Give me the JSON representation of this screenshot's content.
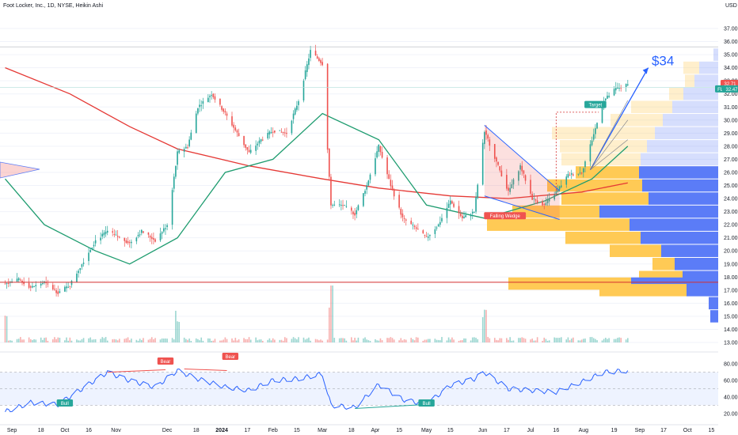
{
  "header": {
    "title": "Foot Locker, Inc., 1D, NYSE, Heikin Ashi",
    "currency": "USD"
  },
  "colors": {
    "up": "#26a69a",
    "down": "#ef5350",
    "ma_slow": "#e53935",
    "ma_fast": "#1e9c6f",
    "rsi": "#2962ff",
    "vp_up": "#ffca55",
    "vp_down": "#5b7cf7",
    "support": "#d32f2f",
    "annotation": "#2962ff"
  },
  "badges": {
    "last_price": "32.71",
    "fl_label": "FL",
    "fl_value": "32.47"
  },
  "annotations": {
    "target_label": "Target",
    "pattern_label": "Falling Wedge",
    "price_target": "$34",
    "bear_1": "Bear",
    "bear_2": "Bear",
    "bull_1": "Bull",
    "bull_2": "Bull"
  },
  "chart_data": [
    {
      "type": "candlestick",
      "title": "Foot Locker, Inc., 1D, NYSE, Heikin Ashi",
      "y_axis_ticks": [
        "37.00",
        "36.00",
        "35.00",
        "34.00",
        "33.00",
        "32.00",
        "31.00",
        "30.00",
        "29.00",
        "28.00",
        "27.00",
        "26.00",
        "25.00",
        "24.00",
        "23.00",
        "22.00",
        "21.00",
        "20.00",
        "19.00",
        "18.00",
        "17.00",
        "16.00",
        "15.00",
        "14.00",
        "13.00"
      ],
      "ylim": [
        13.0,
        37.0
      ],
      "x_axis_ticks": [
        "Sep",
        "18",
        "Oct",
        "16",
        "Nov",
        "Dec",
        "18",
        "2024",
        "17",
        "Feb",
        "15",
        "Mar",
        "18",
        "Apr",
        "15",
        "May",
        "15",
        "Jun",
        "17",
        "Jul",
        "16",
        "Aug",
        "19",
        "Sep",
        "17",
        "Oct",
        "15"
      ],
      "close_path": [
        [
          "2023-08-28",
          17.5
        ],
        [
          "2023-09-05",
          17.8
        ],
        [
          "2023-09-12",
          17.2
        ],
        [
          "2023-09-20",
          17.6
        ],
        [
          "2023-09-28",
          16.8
        ],
        [
          "2023-10-05",
          17.4
        ],
        [
          "2023-10-12",
          19.0
        ],
        [
          "2023-10-20",
          20.8
        ],
        [
          "2023-10-27",
          21.5
        ],
        [
          "2023-11-03",
          21.0
        ],
        [
          "2023-11-09",
          20.6
        ],
        [
          "2023-11-16",
          21.5
        ],
        [
          "2023-11-24",
          20.8
        ],
        [
          "2023-12-01",
          22.0
        ],
        [
          "2023-12-07",
          27.5
        ],
        [
          "2023-12-13",
          28.0
        ],
        [
          "2023-12-19",
          31.0
        ],
        [
          "2023-12-27",
          32.0
        ],
        [
          "2024-01-04",
          30.5
        ],
        [
          "2024-01-11",
          29.0
        ],
        [
          "2024-01-18",
          27.5
        ],
        [
          "2024-01-25",
          28.5
        ],
        [
          "2024-02-01",
          29.2
        ],
        [
          "2024-02-09",
          29.0
        ],
        [
          "2024-02-16",
          31.5
        ],
        [
          "2024-02-23",
          35.3
        ],
        [
          "2024-03-01",
          34.3
        ],
        [
          "2024-03-06",
          23.5
        ],
        [
          "2024-03-13",
          23.5
        ],
        [
          "2024-03-20",
          22.8
        ],
        [
          "2024-03-27",
          25.0
        ],
        [
          "2024-04-03",
          28.0
        ],
        [
          "2024-04-10",
          25.0
        ],
        [
          "2024-04-17",
          22.5
        ],
        [
          "2024-04-24",
          21.8
        ],
        [
          "2024-05-01",
          21.0
        ],
        [
          "2024-05-08",
          22.0
        ],
        [
          "2024-05-15",
          23.8
        ],
        [
          "2024-05-22",
          22.5
        ],
        [
          "2024-05-29",
          23.0
        ],
        [
          "2024-06-04",
          29.2
        ],
        [
          "2024-06-11",
          26.8
        ],
        [
          "2024-06-18",
          24.5
        ],
        [
          "2024-06-25",
          26.5
        ],
        [
          "2024-07-02",
          24.0
        ],
        [
          "2024-07-09",
          23.5
        ],
        [
          "2024-07-16",
          24.5
        ],
        [
          "2024-07-23",
          25.8
        ],
        [
          "2024-07-31",
          26.0
        ],
        [
          "2024-08-06",
          28.5
        ],
        [
          "2024-08-13",
          31.5
        ],
        [
          "2024-08-20",
          32.4
        ],
        [
          "2024-08-27",
          32.7
        ]
      ],
      "volume_spikes": [
        "2023-08-28",
        "2023-12-07",
        "2024-03-06",
        "2024-06-04"
      ],
      "overlays": {
        "ma_slow_path": [
          [
            "2023-08-28",
            34.0
          ],
          [
            "2023-10-05",
            32.0
          ],
          [
            "2023-11-09",
            29.5
          ],
          [
            "2023-12-07",
            27.8
          ],
          [
            "2024-01-18",
            26.5
          ],
          [
            "2024-03-01",
            25.5
          ],
          [
            "2024-04-03",
            24.8
          ],
          [
            "2024-05-15",
            24.2
          ],
          [
            "2024-06-18",
            24.0
          ],
          [
            "2024-07-31",
            24.5
          ],
          [
            "2024-08-27",
            25.2
          ]
        ],
        "ma_fast_path": [
          [
            "2023-08-28",
            25.5
          ],
          [
            "2023-09-20",
            22.0
          ],
          [
            "2023-10-20",
            20.0
          ],
          [
            "2023-11-09",
            19.0
          ],
          [
            "2023-12-07",
            21.0
          ],
          [
            "2024-01-04",
            26.0
          ],
          [
            "2024-02-01",
            27.0
          ],
          [
            "2024-03-01",
            30.5
          ],
          [
            "2024-04-03",
            28.5
          ],
          [
            "2024-05-01",
            23.5
          ],
          [
            "2024-06-04",
            22.5
          ],
          [
            "2024-07-09",
            23.8
          ],
          [
            "2024-08-06",
            25.5
          ],
          [
            "2024-08-27",
            28.0
          ]
        ],
        "support_level": 17.6,
        "target_level": 30.6,
        "projection_target": 34.0
      },
      "volume_profile": [
        {
          "price": 35.0,
          "up": 0,
          "down": 6
        },
        {
          "price": 34.0,
          "up": 20,
          "down": 24
        },
        {
          "price": 33.0,
          "up": 12,
          "down": 30
        },
        {
          "price": 32.0,
          "up": 18,
          "down": 44
        },
        {
          "price": 31.0,
          "up": 52,
          "down": 58
        },
        {
          "price": 30.0,
          "up": 66,
          "down": 70
        },
        {
          "price": 29.0,
          "up": 130,
          "down": 80
        },
        {
          "price": 28.0,
          "up": 110,
          "down": 90
        },
        {
          "price": 27.0,
          "up": 100,
          "down": 98
        },
        {
          "price": 26.0,
          "up": 80,
          "down": 100
        },
        {
          "price": 25.0,
          "up": 120,
          "down": 96
        },
        {
          "price": 24.0,
          "up": 110,
          "down": 88
        },
        {
          "price": 23.0,
          "up": 110,
          "down": 150
        },
        {
          "price": 22.0,
          "up": 180,
          "down": 112
        },
        {
          "price": 21.0,
          "up": 95,
          "down": 98
        },
        {
          "price": 20.0,
          "up": 65,
          "down": 72
        },
        {
          "price": 19.0,
          "up": 28,
          "down": 55
        },
        {
          "price": 18.0,
          "up": 55,
          "down": 45
        },
        {
          "price": 17.5,
          "up": 155,
          "down": 110
        },
        {
          "price": 17.0,
          "up": 110,
          "down": 40
        },
        {
          "price": 16.0,
          "up": 0,
          "down": 12
        },
        {
          "price": 15.0,
          "up": 0,
          "down": 10
        }
      ]
    },
    {
      "type": "line",
      "title": "RSI",
      "y_axis_ticks": [
        "80.00",
        "60.00",
        "40.00",
        "20.00"
      ],
      "ylim": [
        15,
        85
      ],
      "bands": [
        30,
        70
      ],
      "path": [
        [
          "2023-08-28",
          22
        ],
        [
          "2023-09-12",
          33
        ],
        [
          "2023-09-28",
          31
        ],
        [
          "2023-10-12",
          50
        ],
        [
          "2023-10-27",
          70
        ],
        [
          "2023-11-09",
          60
        ],
        [
          "2023-11-24",
          52
        ],
        [
          "2023-12-07",
          72
        ],
        [
          "2023-12-19",
          62
        ],
        [
          "2024-01-04",
          52
        ],
        [
          "2024-01-18",
          48
        ],
        [
          "2024-02-01",
          60
        ],
        [
          "2024-02-16",
          62
        ],
        [
          "2024-03-01",
          68
        ],
        [
          "2024-03-06",
          30
        ],
        [
          "2024-03-20",
          27
        ],
        [
          "2024-04-03",
          55
        ],
        [
          "2024-04-17",
          37
        ],
        [
          "2024-05-01",
          31
        ],
        [
          "2024-05-15",
          54
        ],
        [
          "2024-05-29",
          62
        ],
        [
          "2024-06-04",
          70
        ],
        [
          "2024-06-18",
          50
        ],
        [
          "2024-07-02",
          48
        ],
        [
          "2024-07-16",
          46
        ],
        [
          "2024-07-31",
          58
        ],
        [
          "2024-08-13",
          70
        ],
        [
          "2024-08-27",
          72
        ]
      ]
    }
  ]
}
